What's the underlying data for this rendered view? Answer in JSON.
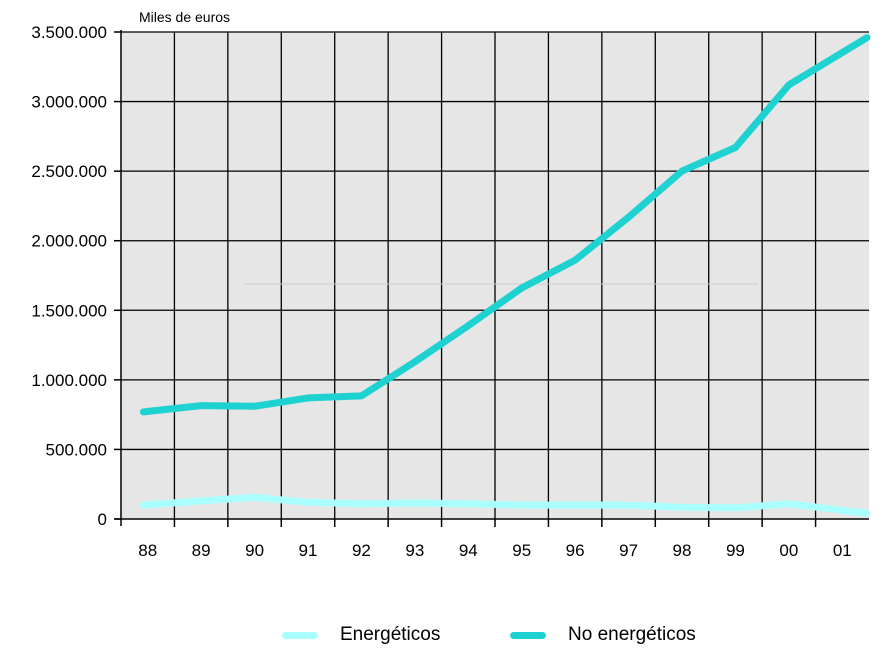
{
  "chart_data": {
    "type": "line",
    "unit_label": "Miles de euros",
    "categories": [
      "88",
      "89",
      "90",
      "91",
      "92",
      "93",
      "94",
      "95",
      "96",
      "97",
      "98",
      "99",
      "00",
      "01"
    ],
    "ylim": [
      0,
      3500000
    ],
    "yticks": [
      0,
      500000,
      1000000,
      1500000,
      2000000,
      2500000,
      3000000,
      3500000
    ],
    "ytick_labels": [
      "0",
      "500.000",
      "1.000.000",
      "1.500.000",
      "2.000.000",
      "2.500.000",
      "3.000.000",
      "3.500.000"
    ],
    "grid": true,
    "legend_position": "bottom",
    "series": [
      {
        "name": "Energéticos",
        "color": "#aaffff",
        "values": [
          100000,
          130000,
          155000,
          120000,
          110000,
          115000,
          110000,
          100000,
          100000,
          100000,
          85000,
          80000,
          110000,
          40000
        ]
      },
      {
        "name": "No energéticos",
        "color": "#1fd2d2",
        "values": [
          770000,
          815000,
          810000,
          870000,
          885000,
          1130000,
          1390000,
          1660000,
          1860000,
          2170000,
          2500000,
          2670000,
          3120000,
          3460000
        ]
      }
    ]
  }
}
